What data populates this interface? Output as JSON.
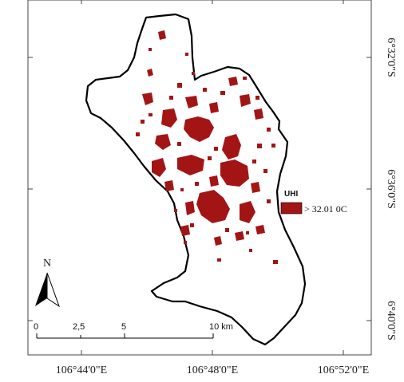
{
  "map": {
    "lon_labels": [
      "106°44'0\"E",
      "106°48'0\"E",
      "106°52'0\"E"
    ],
    "lat_labels": [
      "6°32'0\"S",
      "6°36'0\"S",
      "6°40'0\"S"
    ],
    "north_label": "N",
    "scale_bar": {
      "ticks": [
        "0",
        "2,5",
        "5",
        "10 km"
      ]
    },
    "legend": {
      "title": "UHI",
      "items": [
        {
          "label": "> 32.01 0C",
          "color": "#a31515"
        }
      ]
    },
    "colors": {
      "uhi": "#a31515",
      "boundary": "#000000",
      "frame": "#444444"
    }
  }
}
